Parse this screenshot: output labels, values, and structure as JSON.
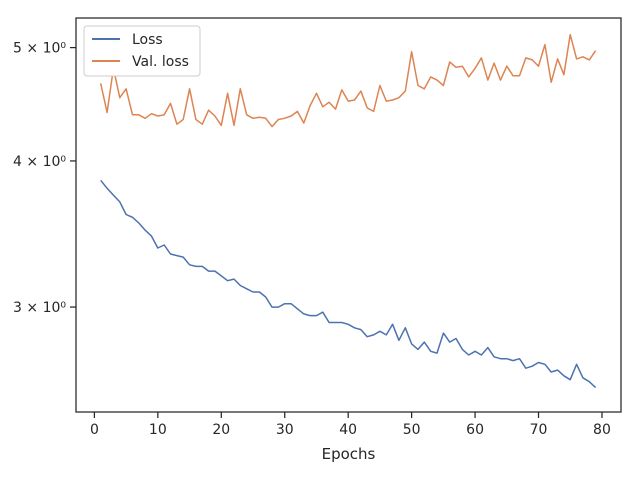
{
  "chart_data": {
    "type": "line",
    "xlabel": "Epochs",
    "ylabel": "",
    "yscale": "log",
    "xlim": [
      -2.9,
      83.0
    ],
    "ylim": [
      2.44,
      5.3
    ],
    "xticks": [
      0,
      10,
      20,
      30,
      40,
      50,
      60,
      70,
      80
    ],
    "yticks": [
      {
        "value": 3,
        "label": "3 × 10⁰"
      },
      {
        "value": 4,
        "label": "4 × 10⁰"
      },
      {
        "value": 5,
        "label": "5 × 10⁰"
      }
    ],
    "grid": false,
    "legend_position": "top-left",
    "x": [
      1,
      2,
      3,
      4,
      5,
      6,
      7,
      8,
      9,
      10,
      11,
      12,
      13,
      14,
      15,
      16,
      17,
      18,
      19,
      20,
      21,
      22,
      23,
      24,
      25,
      26,
      27,
      28,
      29,
      30,
      31,
      32,
      33,
      34,
      35,
      36,
      37,
      38,
      39,
      40,
      41,
      42,
      43,
      44,
      45,
      46,
      47,
      48,
      49,
      50,
      51,
      52,
      53,
      54,
      55,
      56,
      57,
      58,
      59,
      60,
      61,
      62,
      63,
      64,
      65,
      66,
      67,
      68,
      69,
      70,
      71,
      72,
      73,
      74,
      75,
      76,
      77,
      78,
      79
    ],
    "series": [
      {
        "name": "Loss",
        "color": "#4c72b0",
        "values": [
          3.85,
          3.79,
          3.74,
          3.69,
          3.6,
          3.58,
          3.54,
          3.49,
          3.45,
          3.37,
          3.39,
          3.33,
          3.32,
          3.31,
          3.26,
          3.25,
          3.25,
          3.22,
          3.22,
          3.19,
          3.16,
          3.17,
          3.13,
          3.11,
          3.09,
          3.09,
          3.06,
          3.0,
          3.0,
          3.02,
          3.02,
          2.99,
          2.96,
          2.95,
          2.95,
          2.97,
          2.91,
          2.91,
          2.91,
          2.9,
          2.88,
          2.87,
          2.83,
          2.84,
          2.86,
          2.84,
          2.9,
          2.81,
          2.88,
          2.79,
          2.76,
          2.8,
          2.75,
          2.74,
          2.85,
          2.8,
          2.82,
          2.76,
          2.73,
          2.75,
          2.73,
          2.77,
          2.72,
          2.71,
          2.71,
          2.7,
          2.71,
          2.66,
          2.67,
          2.69,
          2.68,
          2.64,
          2.65,
          2.62,
          2.6,
          2.68,
          2.61,
          2.59,
          2.56
        ]
      },
      {
        "name": "Val. loss",
        "color": "#dd8452",
        "values": [
          4.66,
          4.4,
          4.8,
          4.53,
          4.61,
          4.38,
          4.38,
          4.35,
          4.39,
          4.37,
          4.38,
          4.48,
          4.3,
          4.34,
          4.61,
          4.34,
          4.3,
          4.42,
          4.37,
          4.29,
          4.57,
          4.29,
          4.61,
          4.38,
          4.35,
          4.36,
          4.35,
          4.28,
          4.34,
          4.35,
          4.37,
          4.41,
          4.31,
          4.46,
          4.57,
          4.45,
          4.49,
          4.43,
          4.6,
          4.5,
          4.51,
          4.59,
          4.44,
          4.41,
          4.64,
          4.5,
          4.51,
          4.53,
          4.59,
          4.96,
          4.64,
          4.61,
          4.72,
          4.69,
          4.64,
          4.86,
          4.81,
          4.82,
          4.72,
          4.8,
          4.9,
          4.69,
          4.85,
          4.69,
          4.82,
          4.73,
          4.73,
          4.9,
          4.88,
          4.82,
          5.03,
          4.67,
          4.89,
          4.74,
          5.13,
          4.89,
          4.91,
          4.88,
          4.97
        ]
      }
    ]
  }
}
